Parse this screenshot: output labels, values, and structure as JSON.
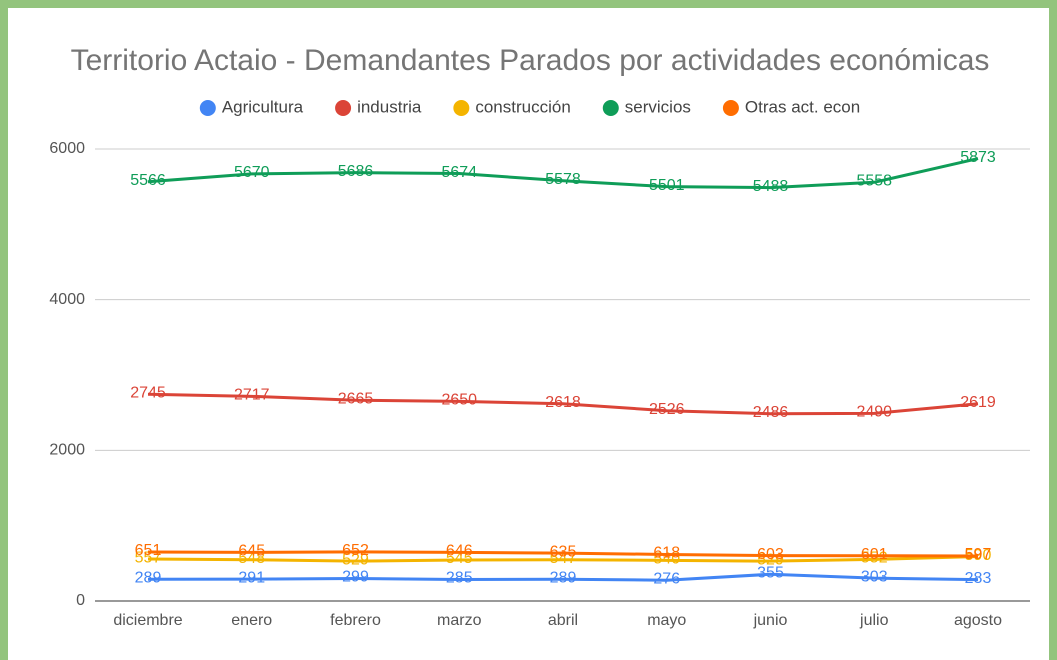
{
  "chart_data": {
    "type": "line",
    "title": "Territorio Actaio - Demandantes Parados por actividades económicas",
    "categories": [
      "diciembre",
      "enero",
      "febrero",
      "marzo",
      "abril",
      "mayo",
      "junio",
      "julio",
      "agosto"
    ],
    "series": [
      {
        "name": "Agricultura",
        "color": "#4285f4",
        "values": [
          289,
          291,
          299,
          285,
          289,
          276,
          355,
          303,
          283
        ]
      },
      {
        "name": "industria",
        "color": "#db4437",
        "values": [
          2745,
          2717,
          2665,
          2650,
          2618,
          2526,
          2486,
          2490,
          2619
        ]
      },
      {
        "name": "construcción",
        "color": "#f4b400",
        "values": [
          557,
          548,
          529,
          545,
          547,
          540,
          529,
          552,
          590
        ]
      },
      {
        "name": "servicios",
        "color": "#0f9d58",
        "values": [
          5566,
          5670,
          5686,
          5674,
          5578,
          5501,
          5488,
          5558,
          5873
        ]
      },
      {
        "name": "Otras act. econ",
        "color": "#ff6d01",
        "values": [
          651,
          645,
          652,
          646,
          635,
          618,
          603,
          601,
          597
        ]
      }
    ],
    "ylim": [
      0,
      6000
    ],
    "yticks": [
      0,
      2000,
      4000,
      6000
    ],
    "grid": true,
    "legend": "top"
  }
}
